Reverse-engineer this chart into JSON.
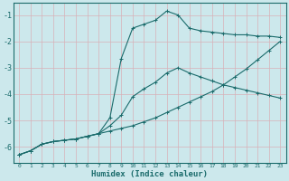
{
  "xlabel": "Humidex (Indice chaleur)",
  "background_color": "#cce8ec",
  "grid_color": "#b0d8de",
  "line_color": "#1a6b6b",
  "xlim": [
    -0.5,
    23.5
  ],
  "ylim": [
    -6.6,
    -0.55
  ],
  "yticks": [
    -6,
    -5,
    -4,
    -3,
    -2,
    -1
  ],
  "xticks": [
    0,
    1,
    2,
    3,
    4,
    5,
    6,
    7,
    8,
    9,
    10,
    11,
    12,
    13,
    14,
    15,
    16,
    17,
    18,
    19,
    20,
    21,
    22,
    23
  ],
  "line1_x": [
    0,
    1,
    2,
    3,
    4,
    5,
    6,
    7,
    8,
    9,
    10,
    11,
    12,
    13,
    14,
    15,
    16,
    17,
    18,
    19,
    20,
    21,
    22,
    23
  ],
  "line1_y": [
    -6.3,
    -6.15,
    -5.9,
    -5.8,
    -5.75,
    -5.7,
    -5.6,
    -5.5,
    -5.4,
    -5.3,
    -5.2,
    -5.05,
    -4.9,
    -4.7,
    -4.5,
    -4.3,
    -4.1,
    -3.9,
    -3.65,
    -3.35,
    -3.05,
    -2.7,
    -2.35,
    -2.0
  ],
  "line2_x": [
    0,
    1,
    2,
    3,
    4,
    5,
    6,
    7,
    8,
    9,
    10,
    11,
    12,
    13,
    14,
    15,
    16,
    17,
    18,
    19,
    20,
    21,
    22,
    23
  ],
  "line2_y": [
    -6.3,
    -6.15,
    -5.9,
    -5.8,
    -5.75,
    -5.7,
    -5.6,
    -5.5,
    -5.2,
    -4.8,
    -4.1,
    -3.8,
    -3.55,
    -3.2,
    -3.0,
    -3.2,
    -3.35,
    -3.5,
    -3.65,
    -3.75,
    -3.85,
    -3.95,
    -4.05,
    -4.15
  ],
  "line3_x": [
    0,
    1,
    2,
    3,
    4,
    5,
    6,
    7,
    8,
    9,
    10,
    11,
    12,
    13,
    14,
    15,
    16,
    17,
    18,
    19,
    20,
    21,
    22,
    23
  ],
  "line3_y": [
    -6.3,
    -6.15,
    -5.9,
    -5.8,
    -5.75,
    -5.7,
    -5.6,
    -5.5,
    -4.9,
    -2.65,
    -1.5,
    -1.35,
    -1.2,
    -0.85,
    -1.0,
    -1.5,
    -1.6,
    -1.65,
    -1.7,
    -1.75,
    -1.75,
    -1.8,
    -1.8,
    -1.85
  ]
}
